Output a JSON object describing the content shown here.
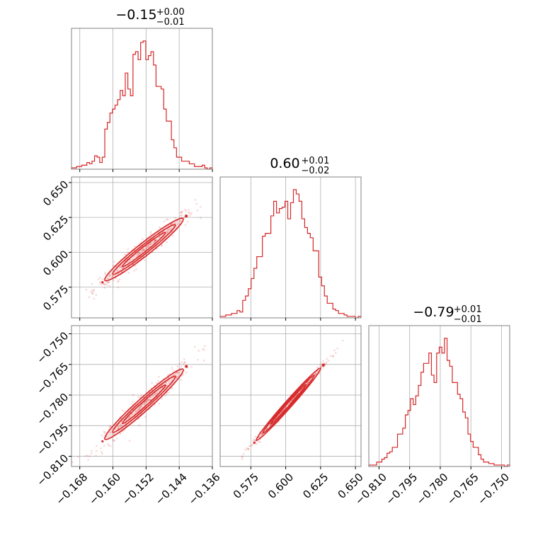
{
  "chart_data": {
    "type": "corner",
    "color": "#d62728",
    "grid": true,
    "parameters": [
      {
        "title_value": "−0.15",
        "title_plus": "+0.00",
        "title_minus": "−0.01",
        "range": [
          -0.17,
          -0.136
        ],
        "ticks": [
          -0.168,
          -0.16,
          -0.152,
          -0.144,
          -0.136
        ],
        "tick_labels": [
          "−0.168",
          "−0.160",
          "−0.152",
          "−0.144",
          "−0.136"
        ]
      },
      {
        "title_value": "0.60",
        "title_plus": "+0.01",
        "title_minus": "−0.02",
        "range": [
          0.553,
          0.654
        ],
        "ticks": [
          0.575,
          0.6,
          0.625,
          0.65
        ],
        "tick_labels": [
          "0.575",
          "0.600",
          "0.625",
          "0.650"
        ]
      },
      {
        "title_value": "−0.79",
        "title_plus": "+0.01",
        "title_minus": "−0.01",
        "range": [
          -0.815,
          -0.746
        ],
        "ticks": [
          -0.81,
          -0.795,
          -0.78,
          -0.765,
          -0.75
        ],
        "tick_labels": [
          "−0.810",
          "−0.795",
          "−0.780",
          "−0.765",
          "−0.750"
        ]
      }
    ],
    "histograms": [
      {
        "param": 0,
        "counts": [
          1,
          1,
          2,
          2,
          3,
          3,
          5,
          4,
          6,
          10,
          9,
          5,
          9,
          30,
          35,
          42,
          45,
          48,
          52,
          59,
          55,
          72,
          60,
          55,
          86,
          88,
          82,
          95,
          96,
          82,
          85,
          88,
          78,
          62,
          62,
          60,
          45,
          36,
          36,
          22,
          16,
          9,
          9,
          6,
          6,
          6,
          4,
          4,
          2,
          2,
          2,
          3,
          1,
          0,
          1
        ]
      },
      {
        "param": 1,
        "counts": [
          1,
          1,
          2,
          2,
          3,
          3,
          5,
          4,
          12,
          15,
          20,
          27,
          34,
          42,
          42,
          56,
          58,
          58,
          70,
          80,
          72,
          75,
          76,
          80,
          68,
          79,
          88,
          85,
          80,
          68,
          62,
          58,
          55,
          46,
          46,
          28,
          22,
          15,
          10,
          10,
          6,
          5,
          3,
          3,
          2,
          1,
          1,
          1,
          0,
          1
        ]
      },
      {
        "param": 2,
        "counts": [
          1,
          1,
          1,
          3,
          3,
          5,
          6,
          9,
          10,
          13,
          13,
          22,
          22,
          26,
          35,
          38,
          46,
          42,
          48,
          55,
          64,
          70,
          70,
          77,
          62,
          57,
          77,
          81,
          77,
          87,
          72,
          68,
          57,
          57,
          49,
          46,
          37,
          33,
          22,
          17,
          13,
          13,
          8,
          5,
          3,
          3,
          2,
          2,
          1,
          1,
          1,
          1,
          0,
          1
        ]
      }
    ]
  }
}
